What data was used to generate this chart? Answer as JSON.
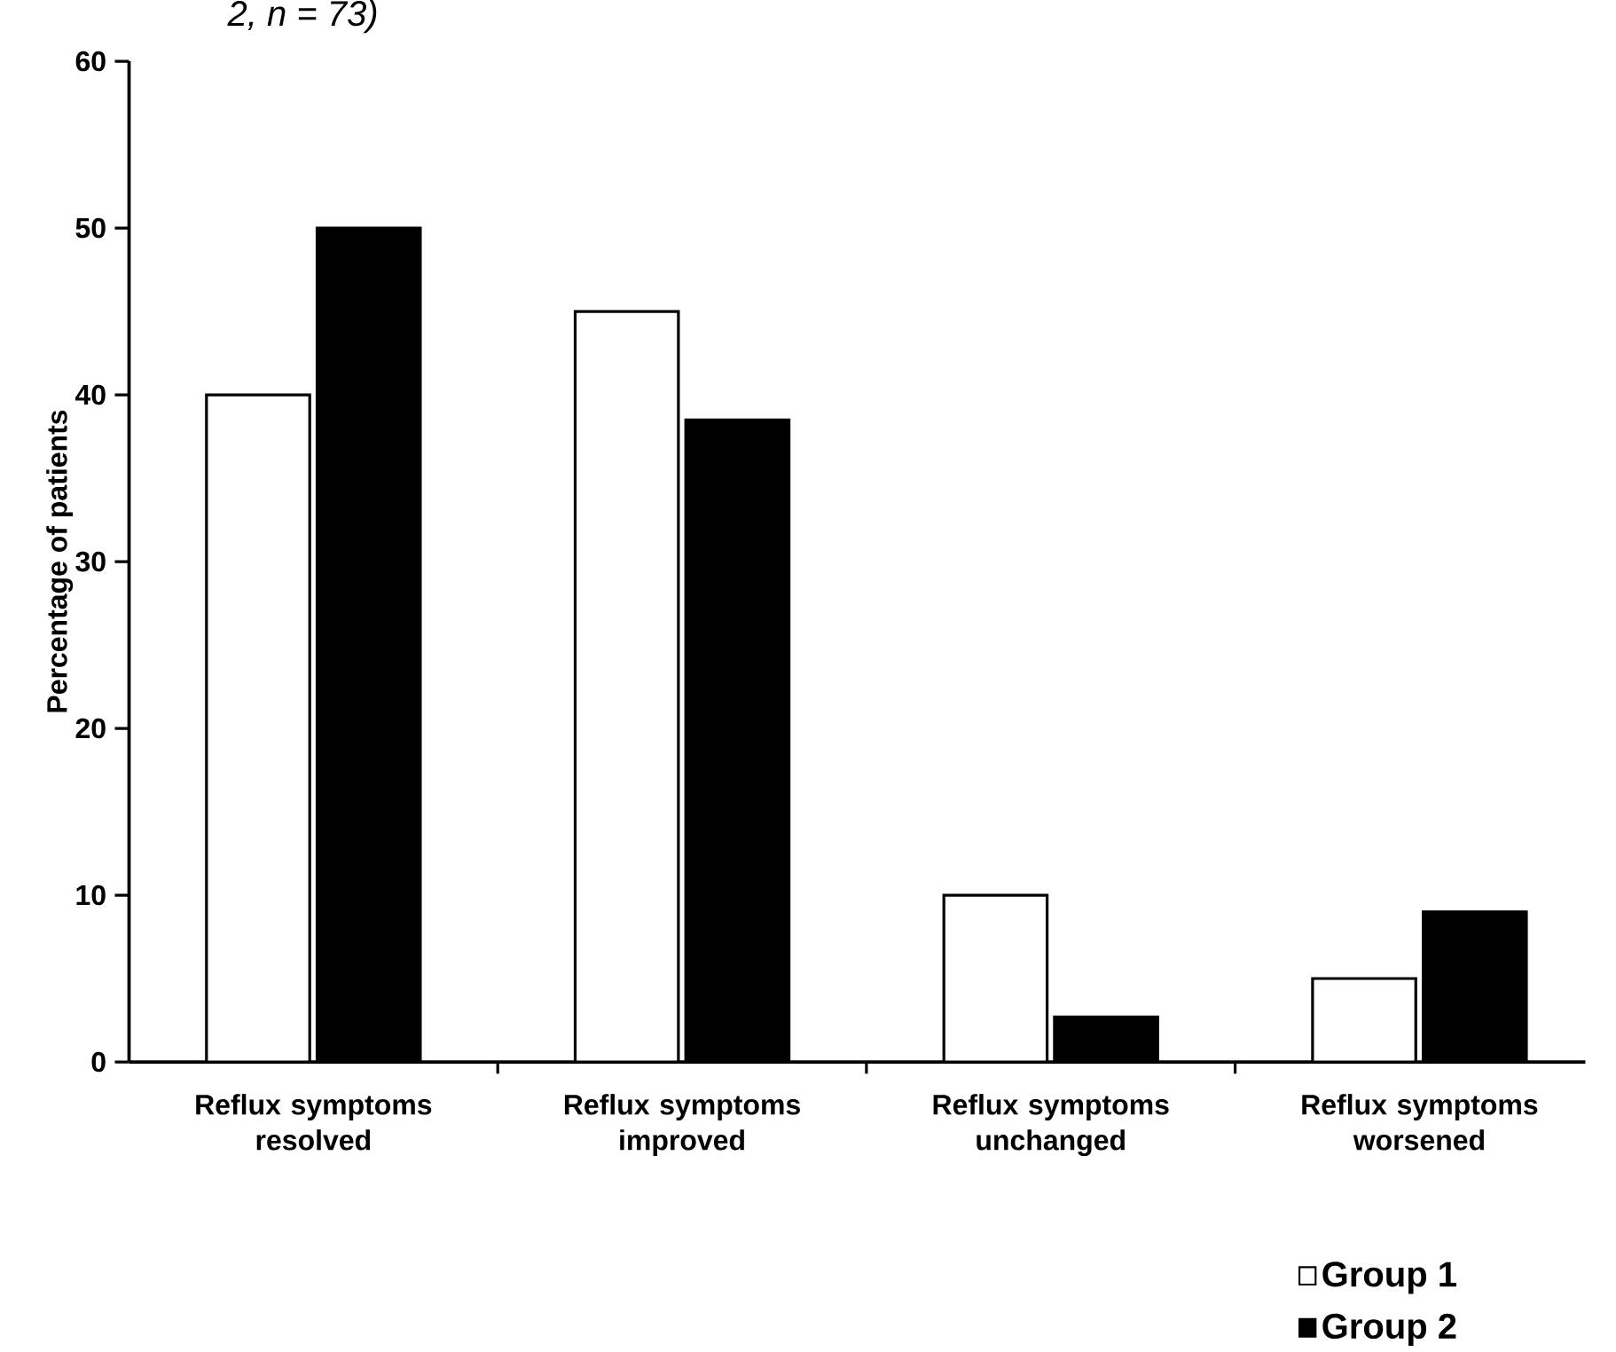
{
  "chart_data": {
    "type": "bar",
    "title": "2, n = 73)",
    "ylabel": "Percentage of patients",
    "categories": [
      "Reflux symptoms resolved",
      "Reflux symptoms improved",
      "Reflux symptoms unchanged",
      "Reflux symptoms worsened"
    ],
    "series": [
      {
        "name": "Group 1",
        "color": "#ffffff",
        "values": [
          40,
          45,
          10,
          5
        ]
      },
      {
        "name": "Group 2",
        "color": "#000000",
        "values": [
          50,
          38.5,
          2.7,
          9
        ]
      }
    ],
    "ylim": [
      0,
      60
    ],
    "yticks": [
      0,
      10,
      20,
      30,
      40,
      50,
      60
    ],
    "grid": false,
    "legend": "bottom right"
  }
}
